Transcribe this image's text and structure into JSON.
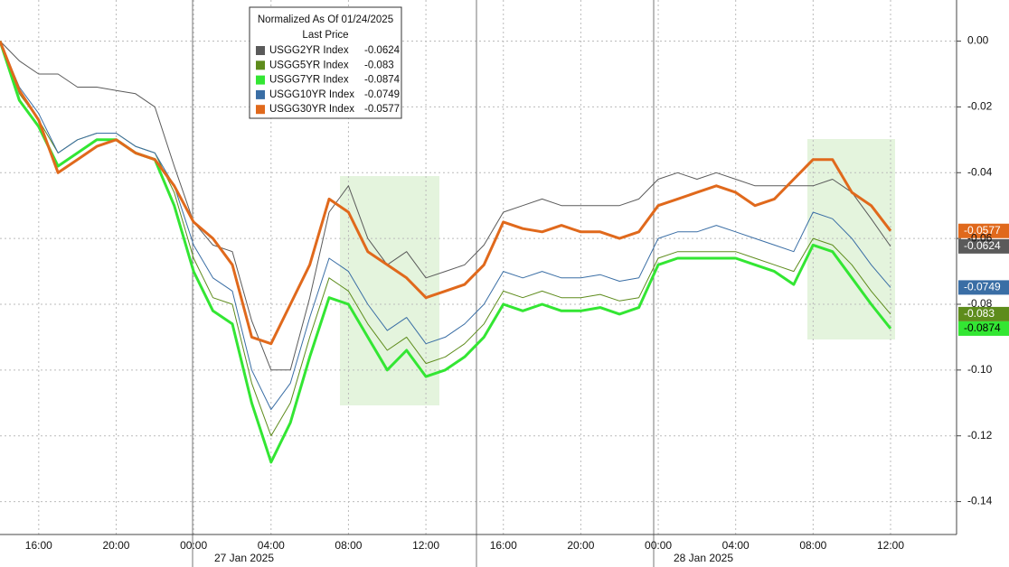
{
  "chart_data": {
    "type": "line",
    "legend_title": "Normalized As Of 01/24/2025",
    "legend_subtitle": "Last Price",
    "date_labels": [
      "27 Jan 2025",
      "28 Jan 2025"
    ],
    "categories": [
      null,
      null,
      "16:00",
      null,
      null,
      null,
      "20:00",
      null,
      null,
      null,
      "00:00",
      null,
      null,
      null,
      "04:00",
      null,
      null,
      null,
      "08:00",
      null,
      null,
      null,
      "12:00",
      null,
      null,
      null,
      "16:00",
      null,
      null,
      null,
      "20:00",
      null,
      null,
      null,
      "00:00",
      null,
      null,
      null,
      "04:00",
      null,
      null,
      null,
      "08:00",
      null,
      null,
      null,
      "12:00"
    ],
    "ylim": [
      -0.15,
      0.0125
    ],
    "yticks": [
      {
        "value": 0,
        "label": "0.00"
      },
      -0.02,
      -0.04,
      -0.06,
      -0.08,
      {
        "value": -0.1,
        "label": "-0.10"
      },
      -0.12,
      -0.14
    ],
    "grid": true,
    "legend": "top-center",
    "series": [
      {
        "name": "USGG2YR Index",
        "color": "#5a5a5a",
        "values": [
          0,
          -0.006,
          -0.01,
          -0.01,
          -0.014,
          -0.014,
          -0.015,
          -0.016,
          -0.02,
          -0.038,
          -0.055,
          -0.062,
          -0.064,
          -0.085,
          -0.1,
          -0.1,
          -0.078,
          -0.052,
          -0.044,
          -0.06,
          -0.068,
          -0.064,
          -0.072,
          -0.07,
          -0.068,
          -0.062,
          -0.052,
          -0.05,
          -0.048,
          -0.05,
          -0.05,
          -0.05,
          -0.05,
          -0.048,
          -0.042,
          -0.04,
          -0.042,
          -0.04,
          -0.042,
          -0.044,
          -0.044,
          -0.044,
          -0.044,
          -0.042,
          -0.046,
          -0.054,
          -0.0624
        ]
      },
      {
        "name": "USGG5YR Index",
        "color": "#5e8c1c",
        "values": [
          0,
          -0.016,
          -0.024,
          -0.034,
          -0.03,
          -0.028,
          -0.028,
          -0.032,
          -0.034,
          -0.046,
          -0.066,
          -0.078,
          -0.08,
          -0.104,
          -0.12,
          -0.11,
          -0.09,
          -0.072,
          -0.076,
          -0.086,
          -0.094,
          -0.09,
          -0.098,
          -0.096,
          -0.092,
          -0.086,
          -0.076,
          -0.078,
          -0.076,
          -0.078,
          -0.078,
          -0.077,
          -0.079,
          -0.078,
          -0.066,
          -0.064,
          -0.064,
          -0.064,
          -0.064,
          -0.066,
          -0.068,
          -0.07,
          -0.06,
          -0.062,
          -0.068,
          -0.076,
          -0.083
        ]
      },
      {
        "name": "USGG7YR Index",
        "color": "#33e633",
        "values": [
          0,
          -0.018,
          -0.026,
          -0.038,
          -0.034,
          -0.03,
          -0.03,
          -0.034,
          -0.036,
          -0.05,
          -0.07,
          -0.082,
          -0.086,
          -0.11,
          -0.128,
          -0.116,
          -0.096,
          -0.078,
          -0.08,
          -0.09,
          -0.1,
          -0.094,
          -0.102,
          -0.1,
          -0.096,
          -0.09,
          -0.08,
          -0.082,
          -0.08,
          -0.082,
          -0.082,
          -0.081,
          -0.083,
          -0.081,
          -0.068,
          -0.066,
          -0.066,
          -0.066,
          -0.066,
          -0.068,
          -0.07,
          -0.074,
          -0.062,
          -0.064,
          -0.072,
          -0.08,
          -0.0874
        ]
      },
      {
        "name": "USGG10YR Index",
        "color": "#3a6ea5",
        "values": [
          0,
          -0.014,
          -0.022,
          -0.034,
          -0.03,
          -0.028,
          -0.028,
          -0.032,
          -0.034,
          -0.044,
          -0.062,
          -0.072,
          -0.076,
          -0.1,
          -0.112,
          -0.104,
          -0.084,
          -0.066,
          -0.07,
          -0.08,
          -0.088,
          -0.084,
          -0.092,
          -0.09,
          -0.086,
          -0.08,
          -0.07,
          -0.072,
          -0.07,
          -0.072,
          -0.072,
          -0.071,
          -0.073,
          -0.072,
          -0.06,
          -0.058,
          -0.058,
          -0.056,
          -0.058,
          -0.06,
          -0.062,
          -0.064,
          -0.052,
          -0.054,
          -0.06,
          -0.068,
          -0.0749
        ]
      },
      {
        "name": "USGG30YR Index",
        "color": "#e0691c",
        "values": [
          0,
          -0.015,
          -0.024,
          -0.04,
          -0.036,
          -0.032,
          -0.03,
          -0.034,
          -0.036,
          -0.044,
          -0.055,
          -0.06,
          -0.068,
          -0.09,
          -0.092,
          -0.08,
          -0.068,
          -0.048,
          -0.052,
          -0.064,
          -0.068,
          -0.072,
          -0.078,
          -0.076,
          -0.074,
          -0.068,
          -0.055,
          -0.057,
          -0.058,
          -0.056,
          -0.058,
          -0.058,
          -0.06,
          -0.058,
          -0.05,
          -0.048,
          -0.046,
          -0.044,
          -0.046,
          -0.05,
          -0.048,
          -0.042,
          -0.036,
          -0.036,
          -0.046,
          -0.05,
          -0.0577
        ]
      }
    ]
  }
}
